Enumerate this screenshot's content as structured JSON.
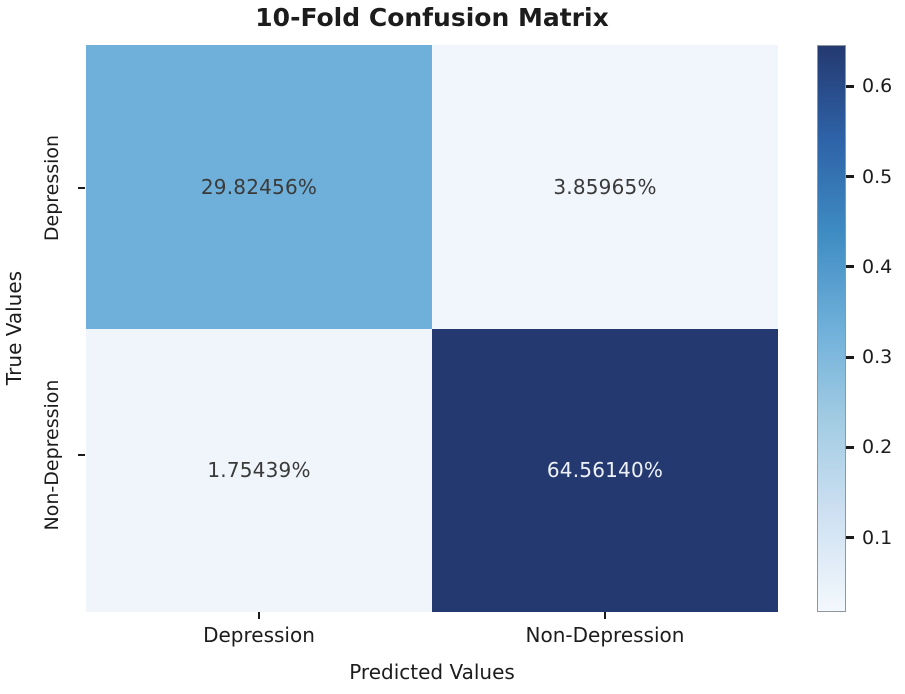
{
  "chart_data": {
    "type": "heatmap",
    "title": "10-Fold Confusion Matrix",
    "xlabel": "Predicted Values",
    "ylabel": "True Values",
    "x_categories": [
      "Depression",
      "Non-Depression"
    ],
    "y_categories": [
      "Depression",
      "Non-Depression"
    ],
    "values": [
      [
        0.2982456,
        0.0385965
      ],
      [
        0.0175439,
        0.645614
      ]
    ],
    "cell_labels": [
      [
        "29.82456%",
        "3.85965%"
      ],
      [
        "1.75439%",
        "64.56140%"
      ]
    ],
    "cell_colors": [
      [
        "#6fb0da",
        "#f1f6fc"
      ],
      [
        "#f0f5fb",
        "#243970"
      ]
    ],
    "cell_text_colors": [
      [
        "#3a3a3a",
        "#3a3a3a"
      ],
      [
        "#3a3a3a",
        "#eef2f8"
      ]
    ],
    "colormap": "Blues",
    "grid": false,
    "legend": "colorbar-right",
    "colorbar": {
      "vmin": 0.0175439,
      "vmax": 0.645614,
      "ticks": [
        0.6,
        0.5,
        0.4,
        0.3,
        0.2,
        0.1
      ],
      "tick_labels": [
        "0.6",
        "0.5",
        "0.4",
        "0.3",
        "0.2",
        "0.1"
      ],
      "gradient_stops": [
        "#243970",
        "#2e63a8",
        "#3f8cc3",
        "#6fb0da",
        "#a3cce3",
        "#cfe1f2",
        "#f3f8fd"
      ]
    }
  }
}
